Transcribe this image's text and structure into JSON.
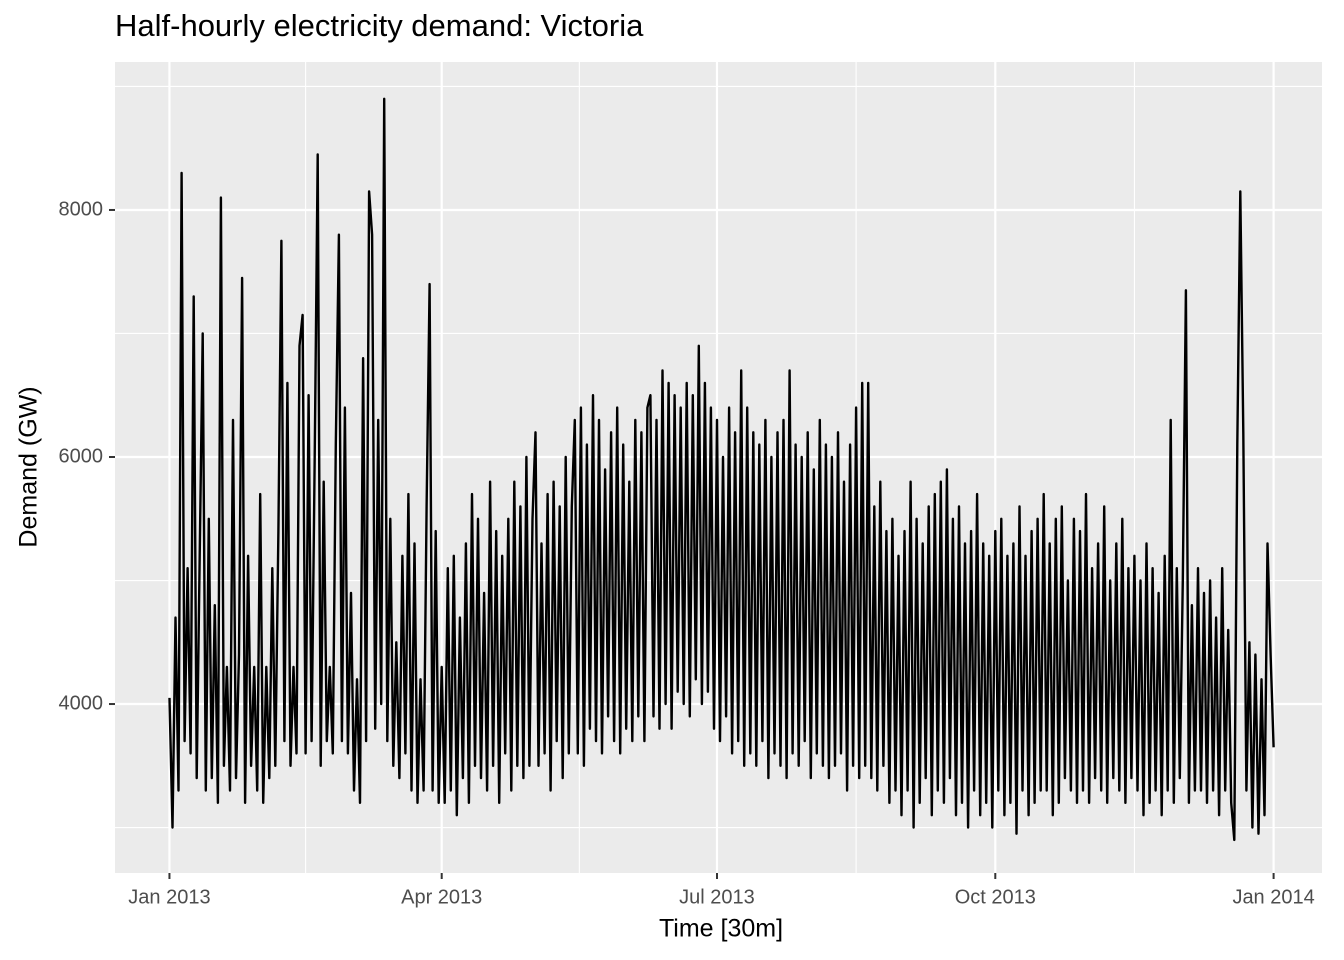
{
  "chart_data": {
    "type": "line",
    "title": "Half-hourly electricity demand: Victoria",
    "x_label": "Time [30m]",
    "y_label": "Demand (GW)",
    "color": "#000000",
    "grid": true,
    "xlim": [
      -18,
      381
    ],
    "ylim": [
      2632,
      9198
    ],
    "xticks": [
      {
        "value": 0,
        "label": "Jan 2013"
      },
      {
        "value": 90,
        "label": "Apr 2013"
      },
      {
        "value": 181,
        "label": "Jul 2013"
      },
      {
        "value": 273,
        "label": "Oct 2013"
      },
      {
        "value": 365,
        "label": "Jan 2014"
      }
    ],
    "yticks": [
      4000,
      6000,
      8000
    ],
    "x": [
      0,
      1,
      2,
      3,
      4,
      5,
      6,
      7,
      8,
      9,
      10,
      11,
      12,
      13,
      14,
      15,
      16,
      17,
      18,
      19,
      20,
      21,
      22,
      23,
      24,
      25,
      26,
      27,
      28,
      29,
      30,
      31,
      32,
      33,
      34,
      35,
      36,
      37,
      38,
      39,
      40,
      41,
      42,
      43,
      44,
      45,
      46,
      47,
      48,
      49,
      50,
      51,
      52,
      53,
      54,
      55,
      56,
      57,
      58,
      59,
      60,
      61,
      62,
      63,
      64,
      65,
      66,
      67,
      68,
      69,
      70,
      71,
      72,
      73,
      74,
      75,
      76,
      77,
      78,
      79,
      80,
      81,
      82,
      83,
      84,
      85,
      86,
      87,
      88,
      89,
      90,
      91,
      92,
      93,
      94,
      95,
      96,
      97,
      98,
      99,
      100,
      101,
      102,
      103,
      104,
      105,
      106,
      107,
      108,
      109,
      110,
      111,
      112,
      113,
      114,
      115,
      116,
      117,
      118,
      119,
      120,
      121,
      122,
      123,
      124,
      125,
      126,
      127,
      128,
      129,
      130,
      131,
      132,
      133,
      134,
      135,
      136,
      137,
      138,
      139,
      140,
      141,
      142,
      143,
      144,
      145,
      146,
      147,
      148,
      149,
      150,
      151,
      152,
      153,
      154,
      155,
      156,
      157,
      158,
      159,
      160,
      161,
      162,
      163,
      164,
      165,
      166,
      167,
      168,
      169,
      170,
      171,
      172,
      173,
      174,
      175,
      176,
      177,
      178,
      179,
      180,
      181,
      182,
      183,
      184,
      185,
      186,
      187,
      188,
      189,
      190,
      191,
      192,
      193,
      194,
      195,
      196,
      197,
      198,
      199,
      200,
      201,
      202,
      203,
      204,
      205,
      206,
      207,
      208,
      209,
      210,
      211,
      212,
      213,
      214,
      215,
      216,
      217,
      218,
      219,
      220,
      221,
      222,
      223,
      224,
      225,
      226,
      227,
      228,
      229,
      230,
      231,
      232,
      233,
      234,
      235,
      236,
      237,
      238,
      239,
      240,
      241,
      242,
      243,
      244,
      245,
      246,
      247,
      248,
      249,
      250,
      251,
      252,
      253,
      254,
      255,
      256,
      257,
      258,
      259,
      260,
      261,
      262,
      263,
      264,
      265,
      266,
      267,
      268,
      269,
      270,
      271,
      272,
      273,
      274,
      275,
      276,
      277,
      278,
      279,
      280,
      281,
      282,
      283,
      284,
      285,
      286,
      287,
      288,
      289,
      290,
      291,
      292,
      293,
      294,
      295,
      296,
      297,
      298,
      299,
      300,
      301,
      302,
      303,
      304,
      305,
      306,
      307,
      308,
      309,
      310,
      311,
      312,
      313,
      314,
      315,
      316,
      317,
      318,
      319,
      320,
      321,
      322,
      323,
      324,
      325,
      326,
      327,
      328,
      329,
      330,
      331,
      332,
      333,
      334,
      335,
      336,
      337,
      338,
      339,
      340,
      341,
      342,
      343,
      344,
      345,
      346,
      347,
      348,
      349,
      350,
      351,
      352,
      353,
      354,
      355,
      356,
      357,
      358,
      359,
      360,
      361,
      362,
      363,
      364,
      365
    ],
    "values": [
      4050,
      3000,
      4700,
      3300,
      8300,
      3700,
      5100,
      3600,
      7300,
      3400,
      5200,
      7000,
      3300,
      5500,
      3400,
      4800,
      3200,
      8100,
      3500,
      4300,
      3300,
      6300,
      3400,
      4400,
      7450,
      3200,
      5200,
      3500,
      4300,
      3300,
      5700,
      3200,
      4300,
      3400,
      5100,
      3500,
      5400,
      7750,
      3700,
      6600,
      3500,
      4300,
      3600,
      6900,
      7150,
      3600,
      6500,
      3700,
      6000,
      8450,
      3500,
      5800,
      3700,
      4300,
      3600,
      6100,
      7800,
      3700,
      6400,
      3600,
      4900,
      3300,
      4200,
      3200,
      6800,
      3700,
      8150,
      7800,
      3800,
      6300,
      4000,
      8900,
      3700,
      5500,
      3500,
      4500,
      3400,
      5200,
      3600,
      5700,
      3300,
      5300,
      3200,
      4200,
      3300,
      5600,
      7400,
      3300,
      5400,
      3200,
      4300,
      3200,
      5100,
      3300,
      5200,
      3100,
      4700,
      3400,
      5300,
      3200,
      5700,
      3500,
      5500,
      3400,
      4900,
      3300,
      5800,
      3500,
      5400,
      3200,
      5200,
      3600,
      5500,
      3300,
      5800,
      3500,
      5600,
      3400,
      6000,
      3500,
      5500,
      6200,
      3500,
      5300,
      3600,
      5700,
      3300,
      5800,
      3700,
      5600,
      3400,
      6000,
      3600,
      5600,
      6300,
      3600,
      6400,
      3500,
      6100,
      3800,
      6500,
      3700,
      6300,
      3600,
      5900,
      3900,
      6200,
      3700,
      6400,
      3600,
      6100,
      3800,
      5800,
      3700,
      6300,
      3900,
      6200,
      3700,
      6400,
      6500,
      3900,
      6300,
      3800,
      6700,
      4000,
      6600,
      3800,
      6500,
      4100,
      6400,
      4000,
      6600,
      3900,
      6500,
      4200,
      6900,
      4000,
      6600,
      4100,
      6400,
      3800,
      6300,
      3700,
      6000,
      3900,
      6400,
      3600,
      6200,
      3700,
      6700,
      3500,
      6400,
      3600,
      6200,
      3500,
      6100,
      3700,
      6300,
      3400,
      6000,
      3600,
      6200,
      3500,
      6300,
      3400,
      6700,
      3600,
      6100,
      3500,
      6000,
      3700,
      6200,
      3400,
      5900,
      3600,
      6300,
      3500,
      6100,
      3400,
      6000,
      3500,
      6200,
      3600,
      5800,
      3300,
      6100,
      3500,
      6400,
      3400,
      6600,
      3500,
      6600,
      3400,
      5600,
      3300,
      5800,
      3500,
      5400,
      3200,
      5500,
      3300,
      5200,
      3100,
      5400,
      3300,
      5800,
      3000,
      5500,
      3200,
      5300,
      3400,
      5600,
      3100,
      5700,
      3300,
      5800,
      3200,
      5900,
      3400,
      5500,
      3100,
      5600,
      3200,
      5300,
      3000,
      5400,
      3300,
      5700,
      3100,
      5300,
      3200,
      5200,
      3000,
      5400,
      3300,
      5500,
      3100,
      5200,
      3200,
      5300,
      2950,
      5600,
      3300,
      5200,
      3100,
      5400,
      3200,
      5500,
      3300,
      5700,
      3300,
      5300,
      3100,
      5500,
      3200,
      5600,
      3400,
      5000,
      3300,
      5500,
      3200,
      5400,
      3300,
      5700,
      3200,
      5100,
      3400,
      5300,
      3300,
      5600,
      3200,
      5000,
      3400,
      5300,
      3300,
      5500,
      3200,
      5100,
      3400,
      5200,
      3300,
      5000,
      3100,
      5300,
      3200,
      5100,
      3300,
      4900,
      3100,
      5200,
      3300,
      6300,
      3200,
      5100,
      3400,
      5000,
      7350,
      3200,
      4800,
      3300,
      5100,
      3300,
      4900,
      3200,
      5000,
      3300,
      4700,
      3100,
      5100,
      3300,
      4600,
      3200,
      2900,
      6100,
      8150,
      6200,
      3300,
      4500,
      3000,
      4400,
      2950,
      4200,
      3100,
      5300,
      4400,
      3650
    ]
  }
}
